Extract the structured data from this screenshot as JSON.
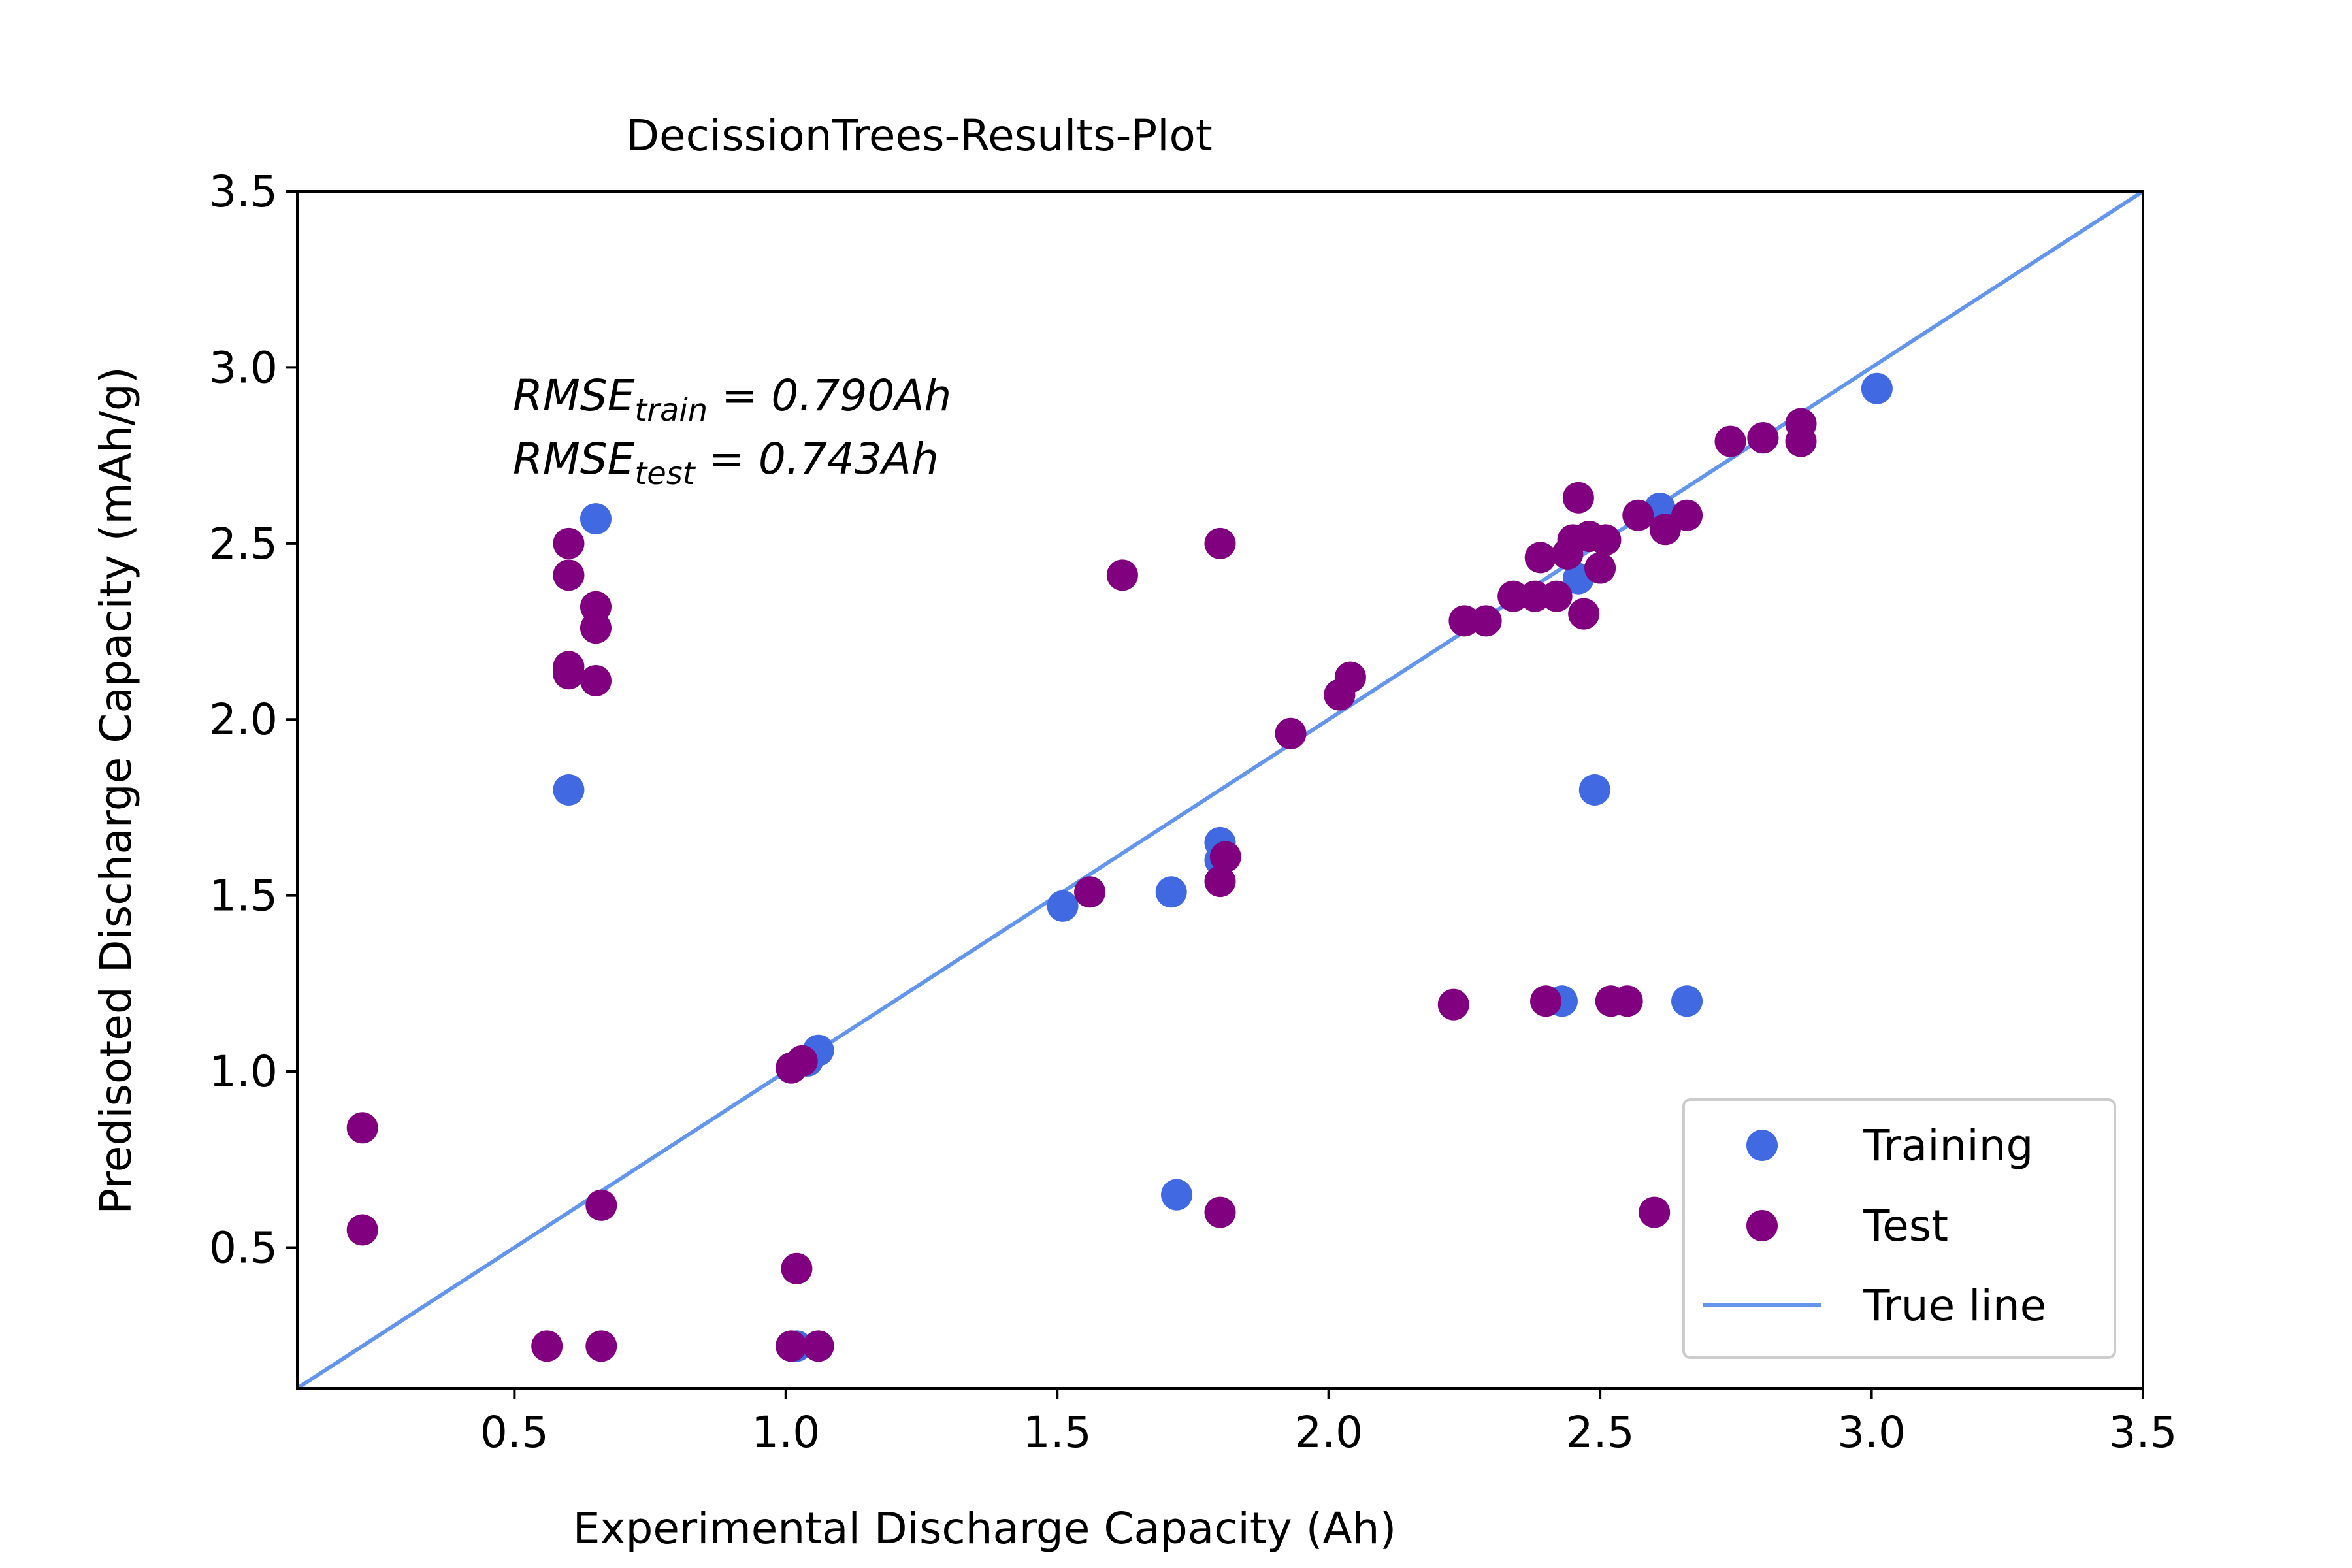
{
  "chart_data": {
    "type": "scatter",
    "title": "DecissionTrees-Results-Plot",
    "xlabel": "Experimental Discharge Capacity (Ah)",
    "ylabel": "Predisoted Discharge Capacity (mAh/g)",
    "xlim": [
      0.1,
      3.5
    ],
    "ylim": [
      0.1,
      3.5
    ],
    "x_ticks": [
      "0.5",
      "1.0",
      "1.5",
      "2.0",
      "2.5",
      "3.0",
      "3.5"
    ],
    "y_ticks": [
      "0.5",
      "1.0",
      "1.5",
      "2.0",
      "2.5",
      "3.0",
      "3.5"
    ],
    "grid": false,
    "legend_position": "lower-right",
    "annotations": {
      "rmse_train": {
        "base": "RMSE",
        "sub": "train",
        "value": " = 0.790Ah"
      },
      "rmse_test": {
        "base": "RMSE",
        "sub": "test",
        "value": " = 0.743Ah"
      }
    },
    "series": [
      {
        "name": "Training",
        "color": "#4169e1",
        "points": [
          [
            0.6,
            1.8
          ],
          [
            0.65,
            2.57
          ],
          [
            1.02,
            0.22
          ],
          [
            1.04,
            1.03
          ],
          [
            1.06,
            1.06
          ],
          [
            1.51,
            1.47
          ],
          [
            1.71,
            1.51
          ],
          [
            1.72,
            0.65
          ],
          [
            1.8,
            1.65
          ],
          [
            1.8,
            1.6
          ],
          [
            2.02,
            2.07
          ],
          [
            2.43,
            1.2
          ],
          [
            2.46,
            2.4
          ],
          [
            2.49,
            1.8
          ],
          [
            2.61,
            2.6
          ],
          [
            2.66,
            1.2
          ],
          [
            2.8,
            2.8
          ],
          [
            3.01,
            2.94
          ]
        ]
      },
      {
        "name": "Test",
        "color": "#800080",
        "points": [
          [
            0.22,
            0.84
          ],
          [
            0.22,
            0.55
          ],
          [
            0.56,
            0.22
          ],
          [
            0.6,
            2.5
          ],
          [
            0.6,
            2.41
          ],
          [
            0.6,
            2.15
          ],
          [
            0.6,
            2.13
          ],
          [
            0.65,
            2.32
          ],
          [
            0.65,
            2.26
          ],
          [
            0.65,
            2.11
          ],
          [
            0.66,
            0.62
          ],
          [
            0.66,
            0.22
          ],
          [
            1.01,
            1.01
          ],
          [
            1.01,
            0.22
          ],
          [
            1.02,
            0.44
          ],
          [
            1.03,
            1.03
          ],
          [
            1.06,
            0.22
          ],
          [
            1.56,
            1.51
          ],
          [
            1.62,
            2.41
          ],
          [
            1.8,
            2.5
          ],
          [
            1.8,
            1.54
          ],
          [
            1.81,
            1.61
          ],
          [
            1.8,
            0.6
          ],
          [
            1.93,
            1.96
          ],
          [
            2.02,
            2.07
          ],
          [
            2.04,
            2.12
          ],
          [
            2.23,
            1.19
          ],
          [
            2.25,
            2.28
          ],
          [
            2.29,
            2.28
          ],
          [
            2.34,
            2.35
          ],
          [
            2.38,
            2.35
          ],
          [
            2.39,
            2.46
          ],
          [
            2.4,
            1.2
          ],
          [
            2.42,
            2.35
          ],
          [
            2.44,
            2.47
          ],
          [
            2.45,
            2.51
          ],
          [
            2.46,
            2.63
          ],
          [
            2.47,
            2.3
          ],
          [
            2.48,
            2.52
          ],
          [
            2.5,
            2.43
          ],
          [
            2.51,
            2.51
          ],
          [
            2.52,
            1.2
          ],
          [
            2.55,
            1.2
          ],
          [
            2.57,
            2.58
          ],
          [
            2.6,
            0.6
          ],
          [
            2.62,
            2.54
          ],
          [
            2.66,
            2.58
          ],
          [
            2.74,
            2.79
          ],
          [
            2.8,
            2.8
          ],
          [
            2.87,
            2.84
          ],
          [
            2.87,
            2.79
          ]
        ]
      },
      {
        "name": "True line",
        "color": "#6495ed",
        "type": "line",
        "points": [
          [
            0.1,
            0.1
          ],
          [
            3.5,
            3.5
          ]
        ]
      }
    ]
  }
}
